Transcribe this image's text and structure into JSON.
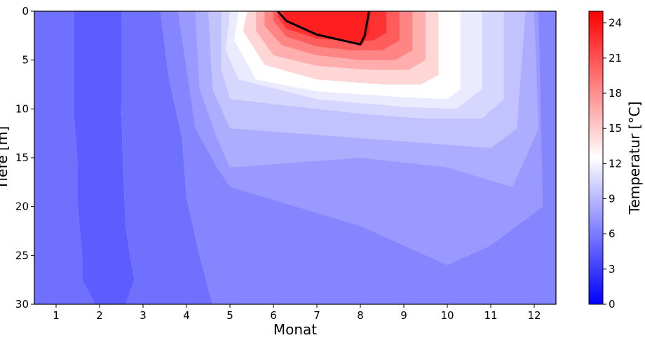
{
  "chart_data": {
    "type": "contour",
    "xlabel": "Monat",
    "ylabel": "Tiefe [m]",
    "colorbar_label": "Temperatur [°C]",
    "x": [
      1,
      2,
      3,
      4,
      5,
      6,
      7,
      8,
      9,
      10,
      11,
      12
    ],
    "x_ticks": [
      "1",
      "2",
      "3",
      "4",
      "5",
      "6",
      "7",
      "8",
      "9",
      "10",
      "11",
      "12"
    ],
    "xlim": [
      0.5,
      12.5
    ],
    "y_ticks": [
      "0",
      "5",
      "10",
      "15",
      "20",
      "25",
      "30"
    ],
    "ylim": [
      30,
      0
    ],
    "colorbar_ticks": [
      "0",
      "3",
      "6",
      "9",
      "12",
      "15",
      "18",
      "21",
      "24"
    ],
    "colorbar_range": [
      0,
      25
    ],
    "colormap": "bwr",
    "bands": [
      {
        "level": 5.5,
        "path": [
          [
            0.5,
            0
          ],
          [
            1.4,
            0
          ],
          [
            1.4,
            10
          ],
          [
            1.5,
            16
          ],
          [
            1.5,
            20
          ],
          [
            1.6,
            25
          ],
          [
            1.6,
            27.5
          ],
          [
            1.9,
            30
          ],
          [
            0.5,
            30
          ]
        ]
      },
      {
        "level": 4.5,
        "path": [
          [
            1.4,
            0
          ],
          [
            2.5,
            0
          ],
          [
            2.5,
            10
          ],
          [
            2.55,
            17
          ],
          [
            2.6,
            22
          ],
          [
            2.7,
            25
          ],
          [
            2.8,
            27.5
          ],
          [
            2.6,
            30
          ],
          [
            1.9,
            30
          ],
          [
            1.6,
            27.5
          ],
          [
            1.6,
            25
          ],
          [
            1.5,
            20
          ],
          [
            1.5,
            16
          ],
          [
            1.4,
            10
          ]
        ]
      },
      {
        "level": 5.5,
        "path": [
          [
            2.5,
            0
          ],
          [
            3.4,
            0
          ],
          [
            3.6,
            7
          ],
          [
            3.9,
            13
          ],
          [
            4.0,
            19
          ],
          [
            4.3,
            25
          ],
          [
            4.6,
            30
          ],
          [
            2.6,
            30
          ],
          [
            2.8,
            27.5
          ],
          [
            2.7,
            25
          ],
          [
            2.6,
            22
          ],
          [
            2.55,
            17
          ],
          [
            2.5,
            10
          ]
        ]
      },
      {
        "level": 6.5,
        "path": [
          [
            3.4,
            0
          ],
          [
            12.5,
            0
          ],
          [
            12.5,
            30
          ],
          [
            4.6,
            30
          ],
          [
            4.3,
            25
          ],
          [
            4.0,
            19
          ],
          [
            3.9,
            13
          ],
          [
            3.6,
            7
          ]
        ]
      },
      {
        "level": 7.5,
        "path": [
          [
            3.8,
            0
          ],
          [
            12.1,
            0
          ],
          [
            12.2,
            20
          ],
          [
            11.0,
            24
          ],
          [
            10.0,
            26
          ],
          [
            8.0,
            22
          ],
          [
            5.0,
            18
          ],
          [
            4.7,
            16
          ],
          [
            4.2,
            12
          ]
        ]
      },
      {
        "level": 8.5,
        "path": [
          [
            4.2,
            0
          ],
          [
            12.0,
            0
          ],
          [
            12.1,
            12
          ],
          [
            11.5,
            18
          ],
          [
            10.0,
            16
          ],
          [
            8.0,
            15
          ],
          [
            5.0,
            16
          ],
          [
            4.7,
            13
          ],
          [
            4.3,
            8
          ]
        ]
      },
      {
        "level": 9.5,
        "path": [
          [
            4.5,
            0
          ],
          [
            11.8,
            0
          ],
          [
            11.6,
            12
          ],
          [
            11.0,
            14
          ],
          [
            9.5,
            13.5
          ],
          [
            8.0,
            13
          ],
          [
            5.0,
            12
          ],
          [
            4.6,
            8
          ]
        ]
      },
      {
        "level": 10.5,
        "path": [
          [
            4.8,
            0
          ],
          [
            11.3,
            0
          ],
          [
            11.3,
            9
          ],
          [
            10.8,
            11
          ],
          [
            9.5,
            11
          ],
          [
            8.0,
            10.5
          ],
          [
            5.0,
            9
          ],
          [
            4.8,
            6
          ]
        ]
      },
      {
        "level": 11.5,
        "path": [
          [
            5.0,
            0
          ],
          [
            10.8,
            0
          ],
          [
            10.8,
            8
          ],
          [
            10.2,
            10
          ],
          [
            9.0,
            9.8
          ],
          [
            7.0,
            9
          ],
          [
            5.2,
            7
          ],
          [
            4.9,
            4
          ]
        ]
      },
      {
        "level": 12.5,
        "path": [
          [
            5.2,
            0
          ],
          [
            10.3,
            0
          ],
          [
            10.3,
            8
          ],
          [
            10.0,
            9
          ],
          [
            9.0,
            8.8
          ],
          [
            7.0,
            8.2
          ],
          [
            5.6,
            7
          ],
          [
            5.1,
            3
          ]
        ]
      },
      {
        "level": 14.5,
        "path": [
          [
            5.4,
            0
          ],
          [
            9.8,
            0
          ],
          [
            9.8,
            6.5
          ],
          [
            9.4,
            7.5
          ],
          [
            8.5,
            7.5
          ],
          [
            7.0,
            7
          ],
          [
            5.8,
            5.5
          ],
          [
            5.3,
            2
          ]
        ]
      },
      {
        "level": 16.5,
        "path": [
          [
            5.6,
            0
          ],
          [
            9.5,
            0
          ],
          [
            9.5,
            5
          ],
          [
            9.1,
            6
          ],
          [
            8.2,
            6
          ],
          [
            7.0,
            5.6
          ],
          [
            6.0,
            4.5
          ],
          [
            5.6,
            2
          ]
        ]
      },
      {
        "level": 18.5,
        "path": [
          [
            5.8,
            0
          ],
          [
            9.2,
            0
          ],
          [
            9.2,
            4
          ],
          [
            8.8,
            5
          ],
          [
            8.0,
            5
          ],
          [
            7.0,
            4.5
          ],
          [
            6.2,
            3.5
          ],
          [
            5.8,
            1.5
          ]
        ]
      },
      {
        "level": 20.5,
        "path": [
          [
            6.0,
            0
          ],
          [
            8.9,
            0
          ],
          [
            8.9,
            3
          ],
          [
            8.5,
            4
          ],
          [
            7.8,
            4
          ],
          [
            7.0,
            3.6
          ],
          [
            6.3,
            2.6
          ],
          [
            6.0,
            1
          ]
        ]
      },
      {
        "level": 22.5,
        "path": [
          [
            6.1,
            0
          ],
          [
            8.6,
            0
          ],
          [
            8.6,
            2.2
          ],
          [
            8.3,
            3
          ],
          [
            7.6,
            3
          ],
          [
            7.0,
            2.8
          ],
          [
            6.3,
            1.8
          ],
          [
            6.1,
            0.6
          ]
        ]
      },
      {
        "level": 23.5,
        "path": [
          [
            6.2,
            0
          ],
          [
            8.25,
            0
          ],
          [
            8.2,
            2.3
          ],
          [
            8.05,
            3.4
          ],
          [
            7.5,
            3
          ],
          [
            6.9,
            2.4
          ],
          [
            6.3,
            1.1
          ]
        ]
      }
    ],
    "contour_line": {
      "level": 24,
      "path": [
        [
          6.1,
          0
        ],
        [
          6.3,
          1
        ],
        [
          7.0,
          2.4
        ],
        [
          8.0,
          3.4
        ],
        [
          8.1,
          2.5
        ],
        [
          8.2,
          0
        ]
      ]
    }
  }
}
